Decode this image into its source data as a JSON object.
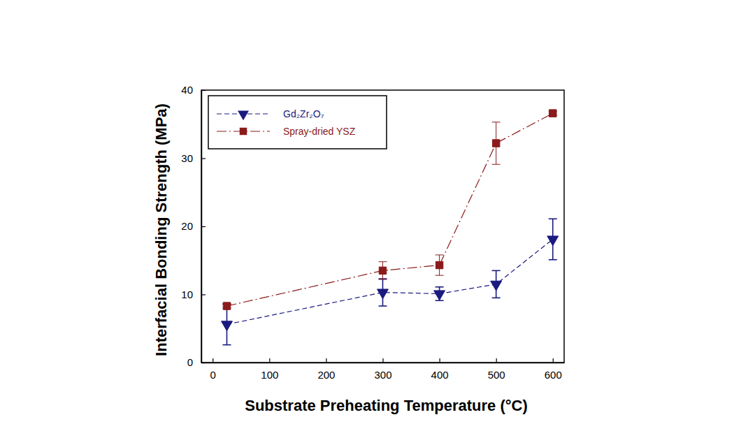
{
  "chart_data": {
    "type": "line",
    "x_label": "Substrate Preheating Temperature (°C)",
    "y_label": "Interfacial Bonding Strength (MPa)",
    "x": [
      25,
      300,
      400,
      500,
      600
    ],
    "series": [
      {
        "name": "Gd₂Zr₂O₇",
        "color": "#1a1a80",
        "marker": "triangle-down",
        "line_style": "dashed",
        "values": [
          5.6,
          10.3,
          10.1,
          11.5,
          18.1
        ],
        "errors": [
          3.0,
          2.0,
          1.0,
          2.0,
          3.0
        ]
      },
      {
        "name": "Spray-dried YSZ",
        "color": "#8b1a1a",
        "marker": "square",
        "line_style": "dashdot",
        "values": [
          8.3,
          13.5,
          14.3,
          32.2,
          36.6
        ],
        "errors": [
          0.3,
          1.3,
          1.5,
          3.1,
          0.3
        ]
      }
    ],
    "xlim": [
      -20,
      620
    ],
    "xticks": [
      0,
      100,
      200,
      300,
      400,
      500,
      600
    ],
    "ylim": [
      0,
      40
    ],
    "yticks": [
      0,
      10,
      20,
      30,
      40
    ],
    "legend": "upper left",
    "grid": false
  }
}
